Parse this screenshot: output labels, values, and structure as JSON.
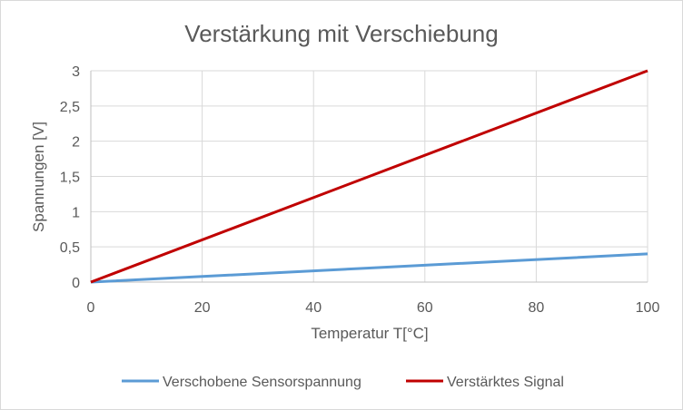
{
  "chart_data": {
    "type": "line",
    "title": "Verstärkung mit Verschiebung",
    "xlabel": "Temperatur T[°C]",
    "ylabel": "Spannungen [V]",
    "xlim": [
      0,
      100
    ],
    "ylim": [
      0,
      3
    ],
    "x_ticks": [
      "0",
      "20",
      "40",
      "60",
      "80",
      "100"
    ],
    "x_tick_values": [
      0,
      20,
      40,
      60,
      80,
      100
    ],
    "y_ticks": [
      "0",
      "0,5",
      "1",
      "1,5",
      "2",
      "2,5",
      "3"
    ],
    "y_tick_values": [
      0,
      0.5,
      1,
      1.5,
      2,
      2.5,
      3
    ],
    "grid": true,
    "legend_position": "bottom",
    "series": [
      {
        "name": "Verschobene Sensorspannung",
        "color": "#5b9bd5",
        "x": [
          0,
          50,
          100
        ],
        "y": [
          0,
          0.2,
          0.4
        ]
      },
      {
        "name": "Verstärktes Signal",
        "color": "#c00000",
        "x": [
          0,
          50,
          100
        ],
        "y": [
          0,
          1.5,
          3
        ]
      }
    ]
  }
}
